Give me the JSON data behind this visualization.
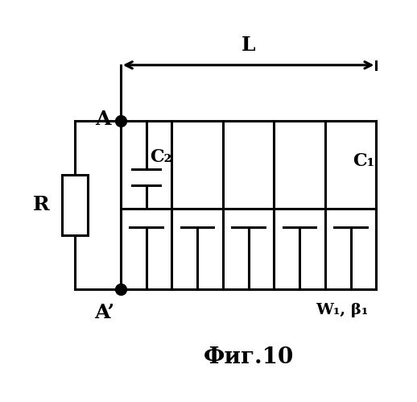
{
  "title": "Фиг.10",
  "label_L": "L",
  "label_R": "R",
  "label_A": "A",
  "label_Aprime": "A’",
  "label_C1": "C₁",
  "label_C2": "C₂",
  "label_W1b1": "W₁, β₁",
  "bg_color": "#ffffff",
  "line_color": "#000000",
  "lw": 2.2,
  "fig_width": 5.18,
  "fig_height": 4.99,
  "dpi": 100
}
